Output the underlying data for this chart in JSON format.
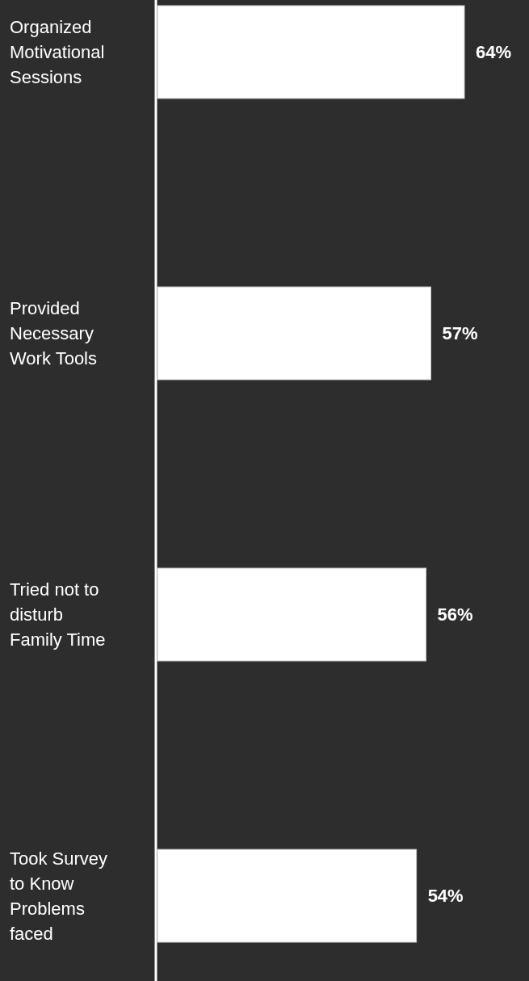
{
  "chart_data": {
    "type": "bar",
    "orientation": "horizontal",
    "categories": [
      "Organized Motivational Sessions",
      "Provided Necessary Work Tools",
      "Tried not to disturb Family Time",
      "Took Survey to Know Problems faced"
    ],
    "values": [
      64,
      57,
      56,
      54
    ],
    "value_labels": [
      "64%",
      "57%",
      "56%",
      "54%"
    ],
    "color": "#ffffff"
  }
}
